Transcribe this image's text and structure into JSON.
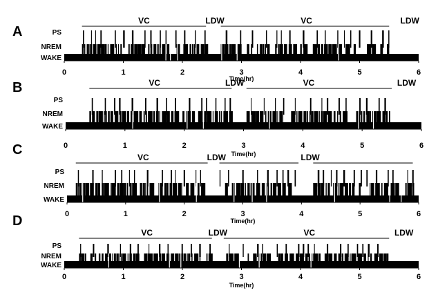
{
  "chart_data": [
    {
      "type": "hypnogram",
      "panel": "A",
      "states": [
        "PS",
        "NREM",
        "WAKE"
      ],
      "xlabel": "Time(hr)",
      "xlim": [
        0,
        6
      ],
      "xticks": [
        0,
        1,
        2,
        3,
        4,
        5,
        6
      ],
      "annotations": [
        {
          "label": "VC",
          "x_start": 0.3,
          "x_end": 2.4,
          "label_x": 1.35
        },
        {
          "label": "LDW",
          "x_start": 2.4,
          "x_end": 2.65,
          "label_x": 2.55
        },
        {
          "label": "VC",
          "x_start": 2.65,
          "x_end": 5.5,
          "label_x": 4.1
        },
        {
          "label": "LDW",
          "x_start": 5.5,
          "x_end": 6.0,
          "label_x": 5.85
        }
      ],
      "seed": 11
    },
    {
      "type": "hypnogram",
      "panel": "B",
      "states": [
        "PS",
        "NREM",
        "WAKE"
      ],
      "xlabel": "Time(hr)",
      "xlim": [
        0,
        6
      ],
      "xticks": [
        0,
        1,
        2,
        3,
        4,
        5,
        6
      ],
      "annotations": [
        {
          "label": "VC",
          "x_start": 0.4,
          "x_end": 2.8,
          "label_x": 1.5
        },
        {
          "label": "LDW",
          "x_start": 2.8,
          "x_end": 3.05,
          "label_x": 2.85
        },
        {
          "label": "VC",
          "x_start": 3.05,
          "x_end": 5.5,
          "label_x": 4.1
        },
        {
          "label": "LDW",
          "x_start": 5.5,
          "x_end": 6.0,
          "label_x": 5.75
        }
      ],
      "seed": 23
    },
    {
      "type": "hypnogram",
      "panel": "C",
      "states": [
        "PS",
        "NREM",
        "WAKE"
      ],
      "xlabel": "Time(hr)",
      "xlim": [
        0,
        6
      ],
      "xticks": [
        0,
        1,
        2,
        3,
        4,
        5,
        6
      ],
      "annotations": [
        {
          "label": "VC",
          "x_start": 0.15,
          "x_end": 2.4,
          "label_x": 1.3
        },
        {
          "label": "LDW",
          "x_start": 2.4,
          "x_end": 2.6,
          "label_x": 2.55
        },
        {
          "label": "",
          "x_start": 2.6,
          "x_end": 3.95,
          "label_x": 3.3
        },
        {
          "label": "LDW",
          "x_start": 3.95,
          "x_end": 4.2,
          "label_x": 4.15
        },
        {
          "label": "",
          "x_start": 4.2,
          "x_end": 5.9,
          "label_x": 5.05
        }
      ],
      "seed": 37
    },
    {
      "type": "hypnogram",
      "panel": "D",
      "states": [
        "PS",
        "NREM",
        "WAKE"
      ],
      "xlabel": "Time(hr)",
      "xlim": [
        0,
        6
      ],
      "xticks": [
        0,
        1,
        2,
        3,
        4,
        5,
        6
      ],
      "annotations": [
        {
          "label": "VC",
          "x_start": 0.25,
          "x_end": 2.5,
          "label_x": 1.4
        },
        {
          "label": "LDW",
          "x_start": 2.5,
          "x_end": 2.7,
          "label_x": 2.6
        },
        {
          "label": "VC",
          "x_start": 2.7,
          "x_end": 5.5,
          "label_x": 4.15
        },
        {
          "label": "LDW",
          "x_start": 5.5,
          "x_end": 6.0,
          "label_x": 5.75
        }
      ],
      "seed": 53
    }
  ]
}
